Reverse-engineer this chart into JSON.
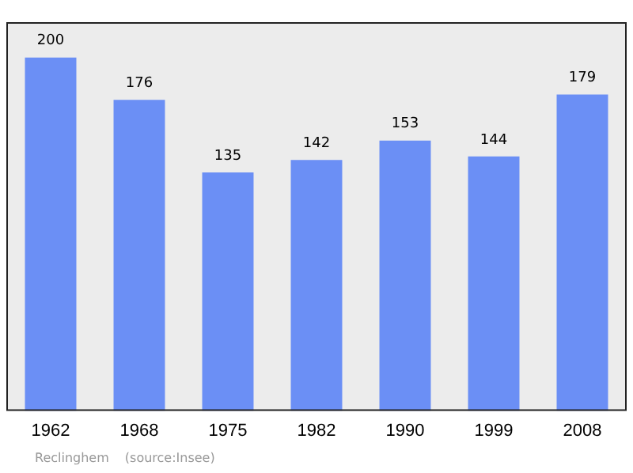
{
  "chart_data": {
    "type": "bar",
    "categories": [
      "1962",
      "1968",
      "1975",
      "1982",
      "1990",
      "1999",
      "2008"
    ],
    "values": [
      200,
      176,
      135,
      142,
      153,
      144,
      179
    ],
    "color": "#6b8ff5",
    "data_labels": true,
    "grid": false,
    "legend": false,
    "annotations": [
      "Reclinghem",
      "(source:Insee)"
    ]
  }
}
